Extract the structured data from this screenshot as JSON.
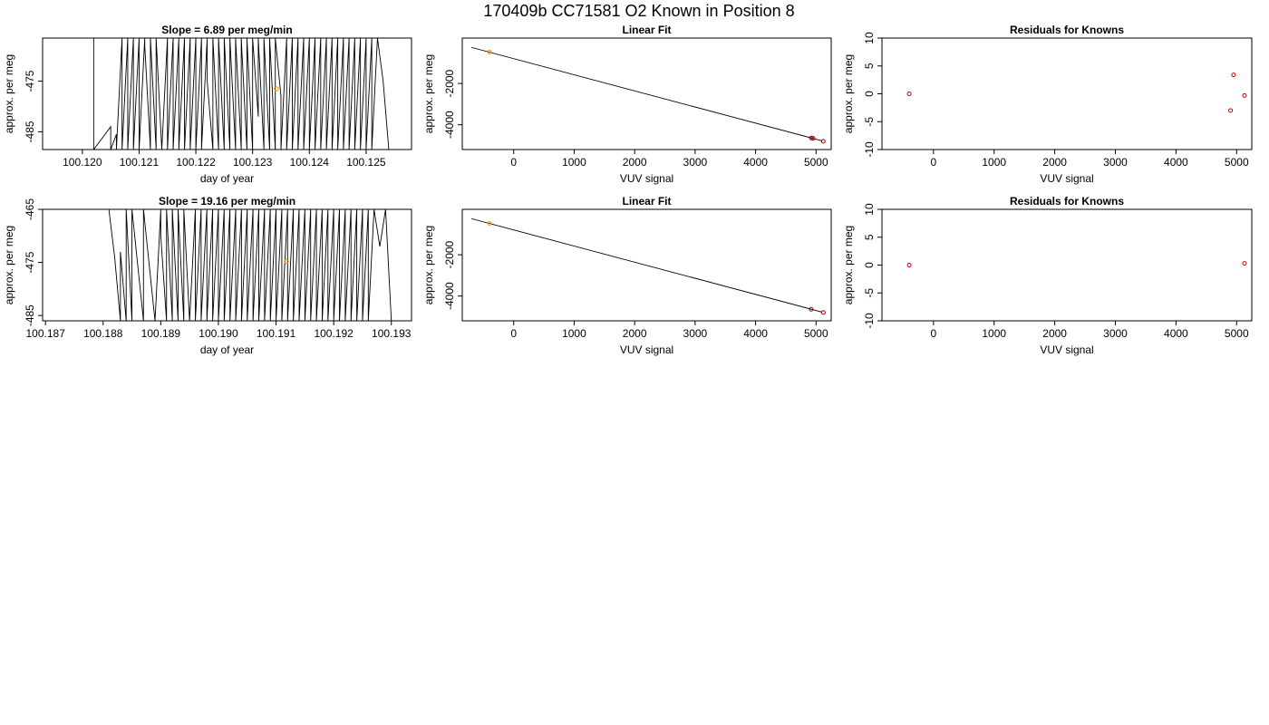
{
  "page": {
    "title": "170409b     CC71581   O2 Known in Position  8"
  },
  "chart_data": [
    {
      "type": "line",
      "title": "Slope =  6.89  per meg/min",
      "xlabel": "day of year",
      "ylabel": "approx. per meg",
      "xlim": [
        100.1193,
        100.1258
      ],
      "ylim": [
        -488.5,
        -466.5
      ],
      "xticks": [
        "100.120",
        "100.121",
        "100.122",
        "100.123",
        "100.124",
        "100.125"
      ],
      "yticks": [
        "-475",
        "-485"
      ],
      "series": [
        {
          "x": [
            100.1202,
            100.1202,
            100.1205,
            100.1205,
            100.1206,
            100.1206,
            100.1207,
            100.1207,
            100.1208,
            100.1208,
            100.1209,
            100.1209,
            100.121,
            100.121,
            100.1211,
            100.1211,
            100.1212,
            100.1212,
            100.1213,
            100.1213,
            100.1214,
            100.1215,
            100.1215,
            100.1216,
            100.1216,
            100.1217,
            100.1217,
            100.1218,
            100.1218,
            100.1219,
            100.1219,
            100.122,
            100.122,
            100.1221,
            100.1221,
            100.1222,
            100.1222,
            100.1223,
            100.1223,
            100.1224,
            100.1224,
            100.1225,
            100.1225,
            100.1226,
            100.1226,
            100.1227,
            100.1227,
            100.1228,
            100.1228,
            100.1229,
            100.1229,
            100.123,
            100.123,
            100.1231,
            100.1231,
            100.1232,
            100.1232,
            100.1233,
            100.1233,
            100.1234,
            100.1234,
            100.1235,
            100.1235,
            100.1236,
            100.1236,
            100.1237,
            100.1237,
            100.1238,
            100.1238,
            100.1239,
            100.1239,
            100.124,
            100.124,
            100.1241,
            100.1241,
            100.1242,
            100.1242,
            100.1243,
            100.1243,
            100.1244,
            100.1244,
            100.1245,
            100.1245,
            100.1246,
            100.1246,
            100.1247,
            100.1247,
            100.1248,
            100.1248,
            100.1249,
            100.1249,
            100.125,
            100.125,
            100.1251,
            100.1251,
            100.1252,
            100.1253,
            100.1254
          ],
          "y": [
            -466.5,
            -488.5,
            -484,
            -488.5,
            -485.5,
            -488.5,
            -466.5,
            -488.5,
            -466.5,
            -488.5,
            -466.5,
            -488.5,
            -466.5,
            -488.5,
            -466.5,
            -468,
            -488.5,
            -466.5,
            -488.5,
            -466.5,
            -488.5,
            -466.5,
            -488.5,
            -466.5,
            -488.5,
            -466.5,
            -488.5,
            -466.5,
            -488.5,
            -466.5,
            -488.5,
            -466.5,
            -488.5,
            -466.5,
            -488.5,
            -466.5,
            -475,
            -488.5,
            -466.5,
            -488.5,
            -466.5,
            -488.5,
            -466.5,
            -488.5,
            -466.5,
            -488.5,
            -466.5,
            -488.5,
            -466.5,
            -488.5,
            -466.5,
            -488.5,
            -466.5,
            -482,
            -466.5,
            -488.5,
            -466.5,
            -488.5,
            -466.5,
            -488.5,
            -466.5,
            -478,
            -488.5,
            -466.5,
            -488.5,
            -466.5,
            -488.5,
            -466.5,
            -488.5,
            -466.5,
            -488.5,
            -466.5,
            -488.5,
            -466.5,
            -488.5,
            -466.5,
            -488.5,
            -466.5,
            -488.5,
            -466.5,
            -488.5,
            -466.5,
            -488.5,
            -466.5,
            -488.5,
            -466.5,
            -488.5,
            -466.5,
            -488.5,
            -466.5,
            -488.5,
            -466.5,
            -488.5,
            -466.5,
            -488.5,
            -466.5,
            -475,
            -488.5
          ]
        }
      ],
      "highlight_point": {
        "x": 100.12342,
        "y": -476.5,
        "color": "#ff8c00"
      },
      "line_color": "#000000"
    },
    {
      "type": "scatter",
      "title": "Linear Fit",
      "xlabel": "VUV signal",
      "ylabel": "approx. per meg",
      "xlim": [
        -850,
        5250
      ],
      "ylim": [
        -5200,
        200
      ],
      "xticks": [
        "0",
        "1000",
        "2000",
        "3000",
        "4000",
        "5000"
      ],
      "yticks": [
        "-2000",
        "-4000"
      ],
      "fit_line": {
        "x": [
          -700,
          5100
        ],
        "y": [
          -250,
          -4780
        ]
      },
      "points": [
        {
          "x": -400,
          "y": -480,
          "color": "#ff8c00"
        },
        {
          "x": 4920,
          "y": -4640,
          "color": "#8b0000"
        },
        {
          "x": 4950,
          "y": -4660,
          "color": "#8b0000"
        },
        {
          "x": 5120,
          "y": -4800,
          "color": "#8b0000"
        }
      ]
    },
    {
      "type": "scatter",
      "title": "Residuals for Knowns",
      "xlabel": "VUV signal",
      "ylabel": "approx. per meg",
      "xlim": [
        -850,
        5250
      ],
      "ylim": [
        -10,
        10
      ],
      "xticks": [
        "0",
        "1000",
        "2000",
        "3000",
        "4000",
        "5000"
      ],
      "yticks": [
        "-10",
        "-5",
        "0",
        "5",
        "10"
      ],
      "points": [
        {
          "x": -400,
          "y": 0,
          "color": "#cc0000"
        },
        {
          "x": 4900,
          "y": -3,
          "color": "#cc0000"
        },
        {
          "x": 4950,
          "y": 3.4,
          "color": "#cc0000"
        },
        {
          "x": 5130,
          "y": -0.3,
          "color": "#cc0000"
        }
      ]
    },
    {
      "type": "line",
      "title": "Slope =  19.16  per meg/min",
      "xlabel": "day of year",
      "ylabel": "approx. per meg",
      "xlim": [
        100.18695,
        100.19335
      ],
      "ylim": [
        -486,
        -465
      ],
      "xticks": [
        "100.187",
        "100.188",
        "100.189",
        "100.190",
        "100.191",
        "100.192",
        "100.193"
      ],
      "yticks": [
        "-465",
        "-475",
        "-485"
      ],
      "series": [
        {
          "x": [
            100.1881,
            100.1882,
            100.1883,
            100.1883,
            100.1884,
            100.1884,
            100.1885,
            100.1885,
            100.1887,
            100.1887,
            100.1889,
            100.189,
            100.189,
            100.1891,
            100.1891,
            100.1892,
            100.1892,
            100.1893,
            100.1893,
            100.1894,
            100.1894,
            100.1895,
            100.1896,
            100.1896,
            100.1897,
            100.1897,
            100.1898,
            100.1898,
            100.1899,
            100.1899,
            100.19,
            100.19,
            100.1901,
            100.1901,
            100.1902,
            100.1902,
            100.1903,
            100.1903,
            100.1904,
            100.1904,
            100.1905,
            100.1905,
            100.1906,
            100.1906,
            100.1907,
            100.1907,
            100.1908,
            100.1908,
            100.1909,
            100.1909,
            100.191,
            100.191,
            100.1911,
            100.1911,
            100.1912,
            100.1912,
            100.1913,
            100.1913,
            100.1914,
            100.1914,
            100.1915,
            100.1915,
            100.1916,
            100.1916,
            100.1917,
            100.1917,
            100.1918,
            100.1918,
            100.1919,
            100.1919,
            100.192,
            100.192,
            100.1921,
            100.1921,
            100.1922,
            100.1922,
            100.1923,
            100.1923,
            100.1924,
            100.1924,
            100.1925,
            100.1925,
            100.1926,
            100.1926,
            100.1927,
            100.1928,
            100.1929,
            100.193
          ],
          "y": [
            -465,
            -474,
            -486,
            -473,
            -486,
            -465,
            -486,
            -465,
            -486,
            -465,
            -486,
            -465,
            -470,
            -486,
            -465,
            -486,
            -465,
            -486,
            -465,
            -486,
            -465,
            -486,
            -465,
            -486,
            -465,
            -486,
            -465,
            -486,
            -465,
            -486,
            -465,
            -486,
            -465,
            -486,
            -465,
            -486,
            -465,
            -486,
            -465,
            -486,
            -465,
            -486,
            -465,
            -486,
            -465,
            -486,
            -465,
            -486,
            -465,
            -486,
            -465,
            -486,
            -465,
            -486,
            -465,
            -486,
            -465,
            -486,
            -465,
            -486,
            -465,
            -486,
            -465,
            -486,
            -465,
            -486,
            -465,
            -486,
            -465,
            -486,
            -465,
            -486,
            -465,
            -486,
            -465,
            -486,
            -465,
            -486,
            -465,
            -486,
            -465,
            -486,
            -465,
            -486,
            -465,
            -472,
            -465,
            -486
          ]
        }
      ],
      "highlight_point": {
        "x": 100.19118,
        "y": -474.8,
        "color": "#ff8c00"
      },
      "line_color": "#000000"
    },
    {
      "type": "scatter",
      "title": "Linear Fit",
      "xlabel": "VUV signal",
      "ylabel": "approx. per meg",
      "xlim": [
        -850,
        5250
      ],
      "ylim": [
        -5200,
        200
      ],
      "xticks": [
        "0",
        "1000",
        "2000",
        "3000",
        "4000",
        "5000"
      ],
      "yticks": [
        "-2000",
        "-4000"
      ],
      "fit_line": {
        "x": [
          -700,
          5100
        ],
        "y": [
          -250,
          -4780
        ]
      },
      "points": [
        {
          "x": -400,
          "y": -480,
          "color": "#ff8c00"
        },
        {
          "x": 4920,
          "y": -4640,
          "color": "#8b0000"
        },
        {
          "x": 5120,
          "y": -4800,
          "color": "#8b0000"
        }
      ]
    },
    {
      "type": "scatter",
      "title": "Residuals for Knowns",
      "xlabel": "VUV signal",
      "ylabel": "approx. per meg",
      "xlim": [
        -850,
        5250
      ],
      "ylim": [
        -10,
        10
      ],
      "xticks": [
        "0",
        "1000",
        "2000",
        "3000",
        "4000",
        "5000"
      ],
      "yticks": [
        "-10",
        "-5",
        "0",
        "5",
        "10"
      ],
      "points": [
        {
          "x": -400,
          "y": 0,
          "color": "#cc0000"
        },
        {
          "x": 5130,
          "y": 0.3,
          "color": "#cc0000"
        }
      ]
    }
  ]
}
